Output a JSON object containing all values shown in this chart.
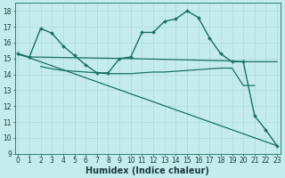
{
  "line1_marked": {
    "x": [
      0,
      1,
      2,
      3,
      4,
      5,
      6,
      7,
      8,
      9,
      10,
      11,
      12,
      13,
      14,
      15,
      16,
      17,
      18,
      19,
      20,
      21,
      22,
      23
    ],
    "y": [
      15.3,
      15.1,
      16.9,
      16.6,
      15.8,
      15.2,
      14.6,
      14.1,
      14.1,
      15.0,
      15.1,
      16.65,
      16.65,
      17.35,
      17.5,
      18.0,
      17.6,
      16.3,
      15.3,
      14.8,
      14.8,
      11.4,
      10.5,
      9.5
    ]
  },
  "line2_flat": {
    "x": [
      0,
      1,
      10,
      19,
      20,
      23
    ],
    "y": [
      15.25,
      15.1,
      15.0,
      14.85,
      14.8,
      14.8
    ]
  },
  "line3_diagonal": {
    "x": [
      0,
      23
    ],
    "y": [
      15.3,
      9.5
    ]
  },
  "line4_low_flat": {
    "x": [
      2,
      3,
      4,
      5,
      6,
      7,
      8,
      9,
      10,
      11,
      12,
      13,
      14,
      15,
      16,
      17,
      18,
      19,
      20,
      21
    ],
    "y": [
      14.5,
      14.35,
      14.25,
      14.2,
      14.15,
      14.1,
      14.05,
      14.05,
      14.05,
      14.1,
      14.15,
      14.15,
      14.2,
      14.25,
      14.3,
      14.35,
      14.4,
      14.4,
      13.3,
      13.3
    ]
  },
  "xlim": [
    -0.3,
    23.3
  ],
  "ylim": [
    9,
    18.5
  ],
  "yticks": [
    9,
    10,
    11,
    12,
    13,
    14,
    15,
    16,
    17,
    18
  ],
  "xticks": [
    0,
    1,
    2,
    3,
    4,
    5,
    6,
    7,
    8,
    9,
    10,
    11,
    12,
    13,
    14,
    15,
    16,
    17,
    18,
    19,
    20,
    21,
    22,
    23
  ],
  "xlabel": "Humidex (Indice chaleur)",
  "bg_color": "#c5ecec",
  "grid_color": "#aadada",
  "line_color": "#1a6e64",
  "tick_fontsize": 5.5,
  "xlabel_fontsize": 7.0,
  "marker": "D",
  "markersize": 2.0,
  "lw_marked": 1.0,
  "lw_plain": 0.9
}
